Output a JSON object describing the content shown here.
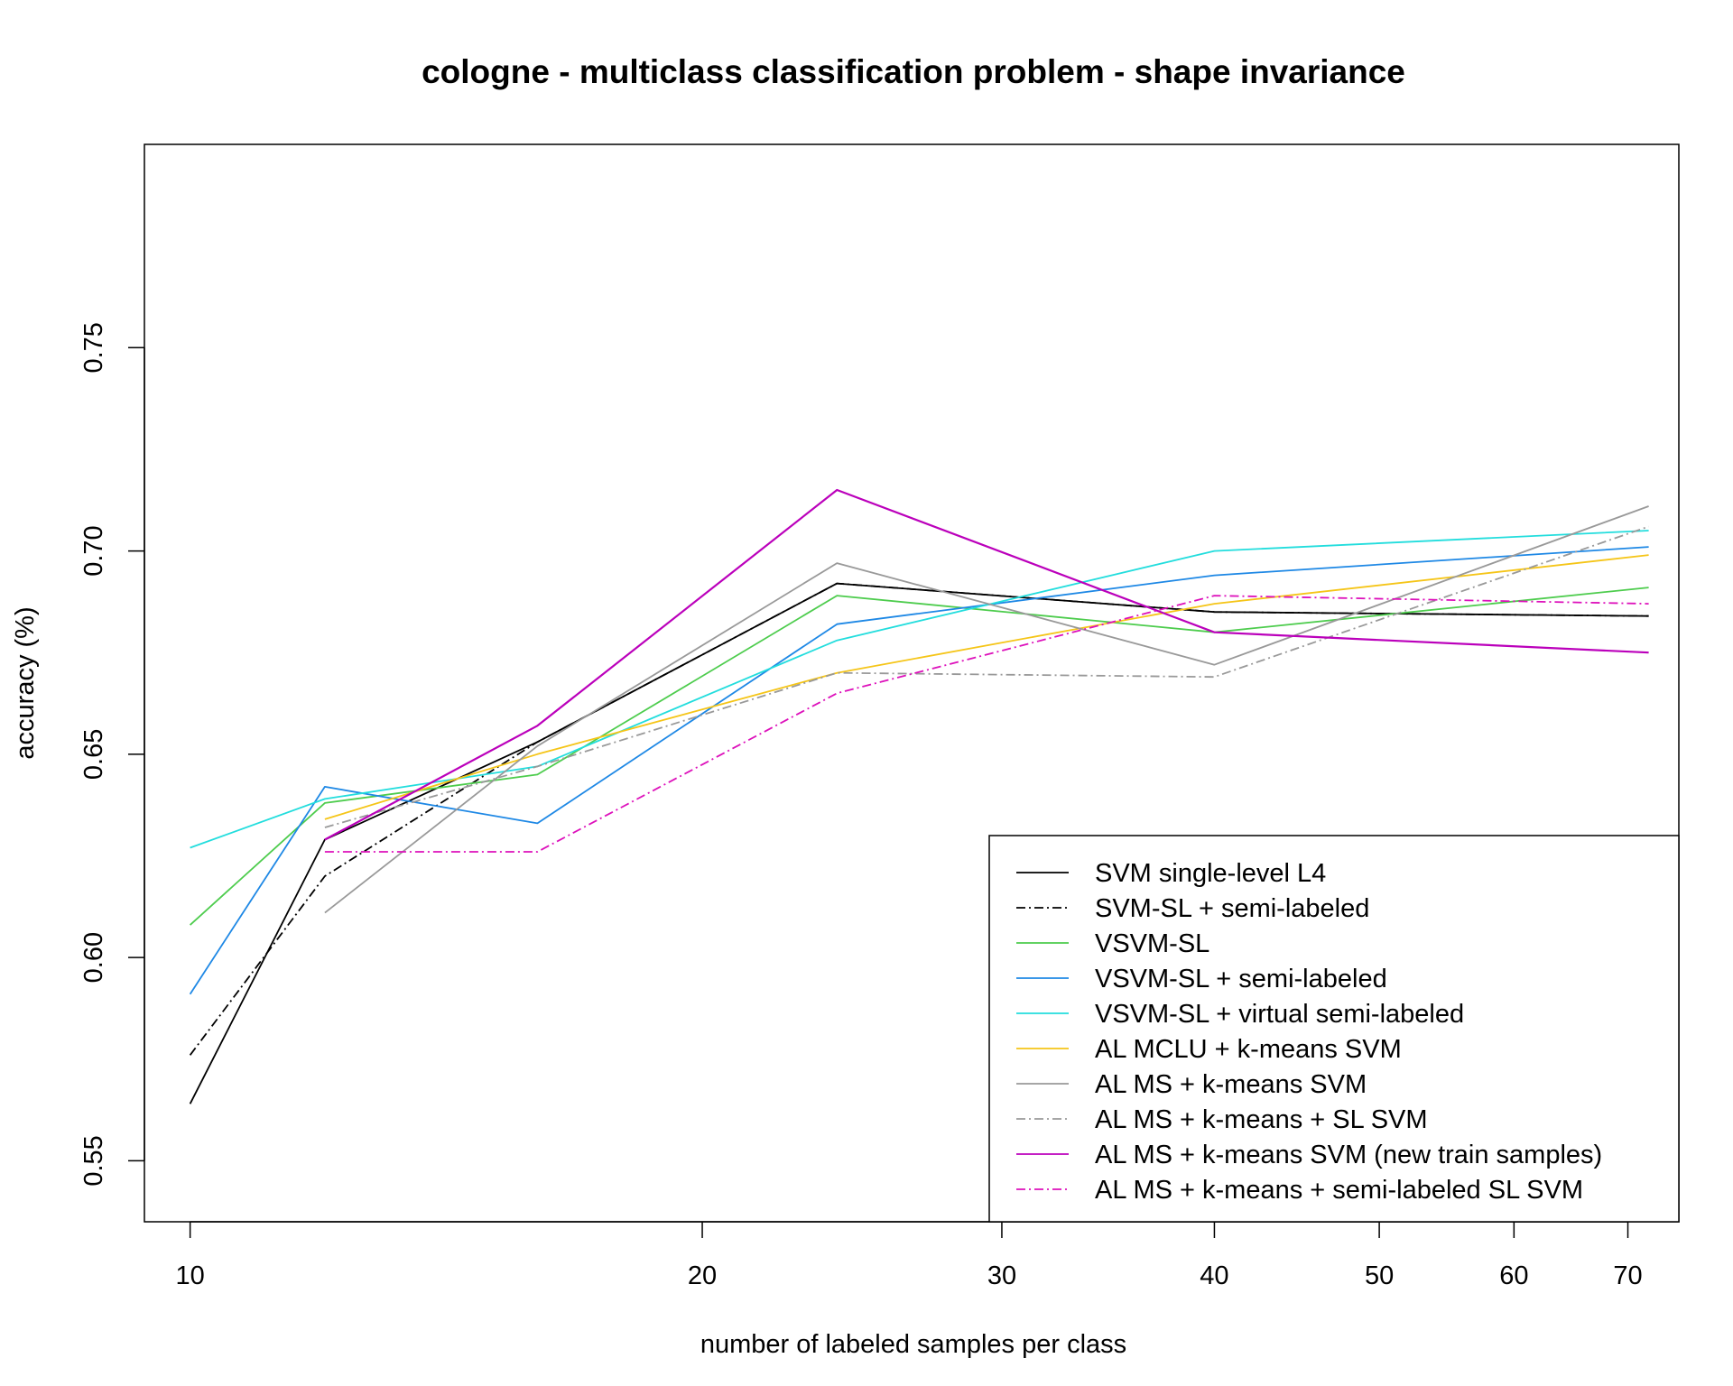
{
  "chart_data": {
    "type": "line",
    "title": "cologne - multiclass classification problem - shape invariance",
    "xlabel": "number of labeled samples per class",
    "ylabel": "accuracy (%)",
    "x_scale": "log",
    "xlim": [
      9.4,
      75
    ],
    "ylim": [
      0.535,
      0.8
    ],
    "x_ticks": [
      10,
      20,
      30,
      40,
      50,
      60,
      70
    ],
    "y_ticks": [
      0.55,
      0.6,
      0.65,
      0.7,
      0.75
    ],
    "y_tick_labels": [
      "0.55",
      "0.60",
      "0.65",
      "0.70",
      "0.75"
    ],
    "grid": false,
    "legend_position": "bottom-right",
    "series": [
      {
        "name": "SVM single-level L4",
        "color": "#000000",
        "dash": "solid",
        "x": [
          10,
          12,
          16,
          24,
          40,
          72
        ],
        "y": [
          0.564,
          0.629,
          0.653,
          0.692,
          0.685,
          0.684
        ]
      },
      {
        "name": "SVM-SL + semi-labeled",
        "color": "#000000",
        "dash": "dashdot",
        "x": [
          10,
          12,
          16,
          24,
          40,
          72
        ],
        "y": [
          0.576,
          0.62,
          0.653,
          0.692,
          0.685,
          0.684
        ]
      },
      {
        "name": "VSVM-SL",
        "color": "#4dcc4d",
        "dash": "solid",
        "x": [
          10,
          12,
          16,
          24,
          40,
          72
        ],
        "y": [
          0.608,
          0.638,
          0.645,
          0.689,
          0.68,
          0.691
        ]
      },
      {
        "name": "VSVM-SL + semi-labeled",
        "color": "#1e88e5",
        "dash": "solid",
        "x": [
          10,
          12,
          16,
          24,
          40,
          72
        ],
        "y": [
          0.591,
          0.642,
          0.633,
          0.682,
          0.694,
          0.701
        ]
      },
      {
        "name": "VSVM-SL + virtual semi-labeled",
        "color": "#22dddd",
        "dash": "solid",
        "x": [
          10,
          12,
          16,
          24,
          40,
          72
        ],
        "y": [
          0.627,
          0.639,
          0.647,
          0.678,
          0.7,
          0.705
        ]
      },
      {
        "name": "AL MCLU + k-means SVM",
        "color": "#f5c518",
        "dash": "solid",
        "x": [
          12,
          16,
          24,
          40,
          72
        ],
        "y": [
          0.634,
          0.65,
          0.67,
          0.687,
          0.699
        ]
      },
      {
        "name": "AL MS + k-means SVM",
        "color": "#999999",
        "dash": "solid",
        "x": [
          12,
          16,
          24,
          40,
          72
        ],
        "y": [
          0.611,
          0.652,
          0.697,
          0.672,
          0.711
        ]
      },
      {
        "name": "AL MS + k-means + SL SVM",
        "color": "#999999",
        "dash": "dashdot",
        "x": [
          12,
          16,
          24,
          40,
          72
        ],
        "y": [
          0.632,
          0.647,
          0.67,
          0.669,
          0.706
        ]
      },
      {
        "name": "AL MS + k-means SVM (new train samples)",
        "color": "#bb00bb",
        "dash": "solid",
        "x": [
          12,
          16,
          24,
          40,
          72
        ],
        "y": [
          0.629,
          0.657,
          0.715,
          0.68,
          0.675
        ]
      },
      {
        "name": "AL MS + k-means + semi-labeled SL SVM",
        "color": "#dd11bb",
        "dash": "dashdot",
        "x": [
          12,
          16,
          24,
          40,
          72
        ],
        "y": [
          0.626,
          0.626,
          0.665,
          0.689,
          0.687
        ]
      }
    ]
  }
}
